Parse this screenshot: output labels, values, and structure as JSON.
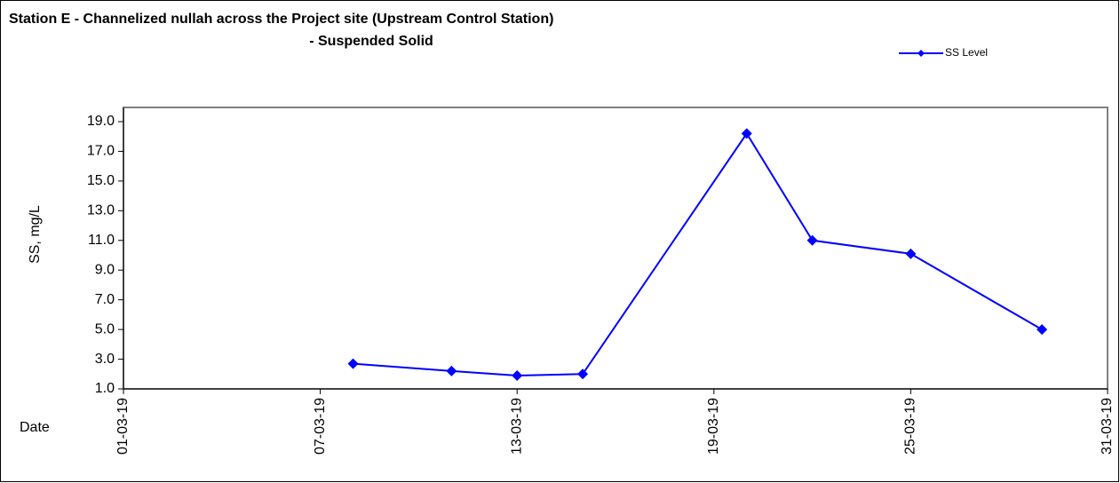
{
  "chart_data": {
    "type": "line",
    "title": [
      "Station E - Channelized nullah across the Project site (Upstream Control Station)",
      "- Suspended Solid"
    ],
    "x_label": "Date",
    "y_label": "SS, mg/L",
    "x": [
      "08-03-19",
      "11-03-19",
      "13-03-19",
      "15-03-19",
      "20-03-19",
      "22-03-19",
      "25-03-19",
      "29-03-19"
    ],
    "series": [
      {
        "name": "SS Level",
        "color": "#0000ff",
        "values": [
          2.7,
          2.2,
          1.9,
          2.0,
          18.2,
          11.0,
          10.1,
          5.0
        ]
      }
    ],
    "xlim": [
      "01-03-19",
      "31-03-19"
    ],
    "xticks": [
      "01-03-19",
      "07-03-19",
      "13-03-19",
      "19-03-19",
      "25-03-19",
      "31-03-19"
    ],
    "ylim": [
      1,
      19
    ],
    "yticks": [
      {
        "value": 1,
        "label": "1.0"
      },
      {
        "value": 3,
        "label": "3.0"
      },
      {
        "value": 5,
        "label": "5.0"
      },
      {
        "value": 7,
        "label": "7.0"
      },
      {
        "value": 9,
        "label": "9.0"
      },
      {
        "value": 11,
        "label": "11.0"
      },
      {
        "value": 13,
        "label": "13.0"
      },
      {
        "value": 15,
        "label": "15.0"
      },
      {
        "value": 17,
        "label": "17.0"
      },
      {
        "value": 19,
        "label": "19.0"
      }
    ],
    "grid": false,
    "legend": "top-right"
  }
}
